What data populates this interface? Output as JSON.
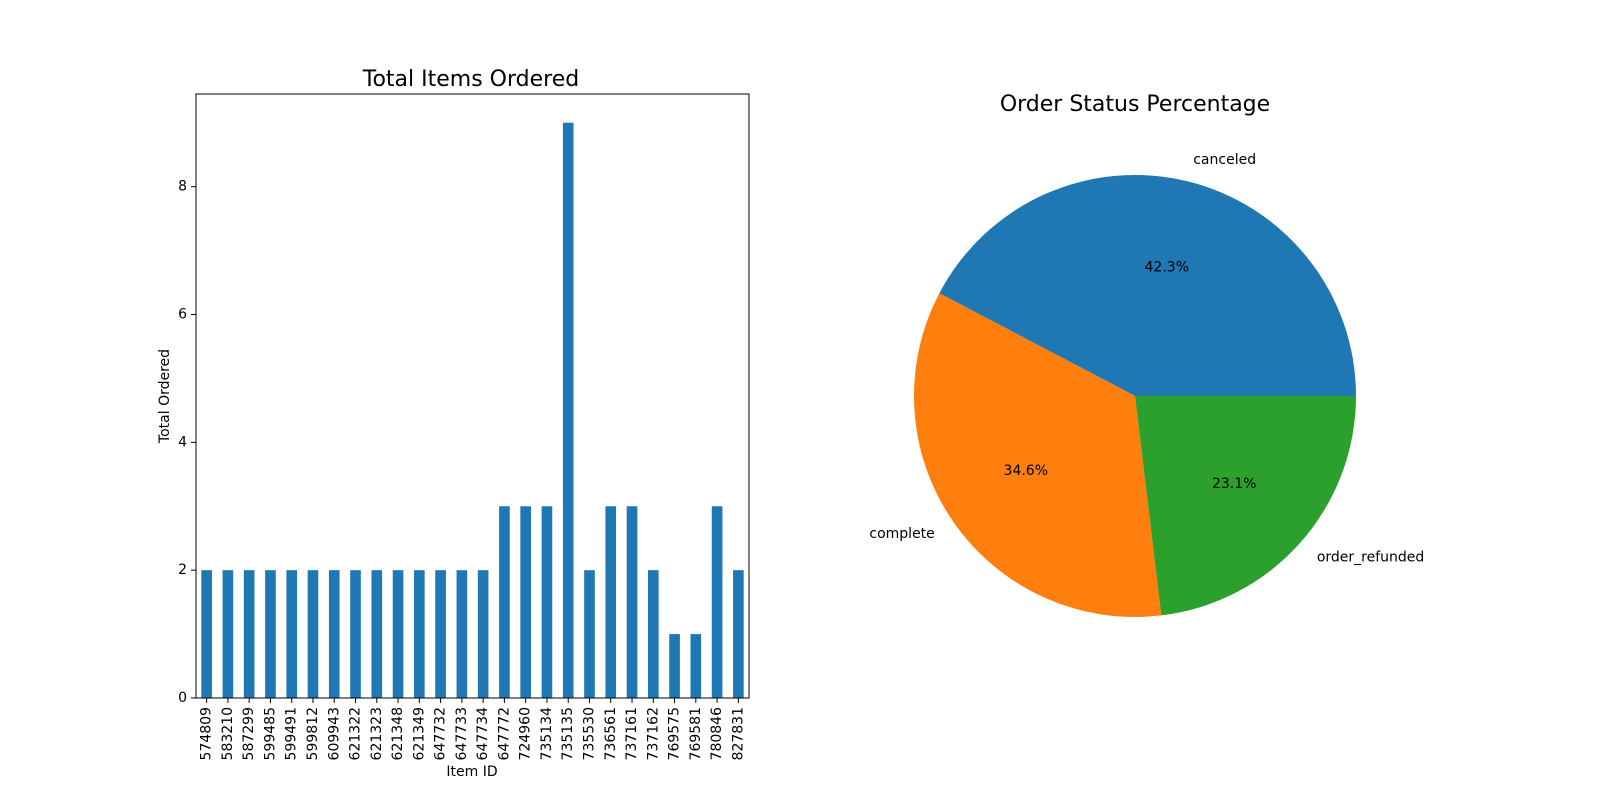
{
  "chart_data": [
    {
      "type": "bar",
      "title": "Total Items Ordered",
      "xlabel": "Item ID",
      "ylabel": "Total Ordered",
      "ylim": [
        0,
        9.45
      ],
      "yticks": [
        0,
        2,
        4,
        6,
        8
      ],
      "categories": [
        "574809",
        "583210",
        "587299",
        "599485",
        "599491",
        "599812",
        "609943",
        "621322",
        "621323",
        "621348",
        "621349",
        "647732",
        "647733",
        "647734",
        "647772",
        "724960",
        "735134",
        "735135",
        "735530",
        "736561",
        "737161",
        "737162",
        "769575",
        "769581",
        "780846",
        "827831"
      ],
      "values": [
        2,
        2,
        2,
        2,
        2,
        2,
        2,
        2,
        2,
        2,
        2,
        2,
        2,
        2,
        3,
        3,
        3,
        9,
        2,
        3,
        3,
        2,
        1,
        1,
        3,
        2
      ],
      "color": "#1f77b4",
      "grid": false
    },
    {
      "type": "pie",
      "title": "Order Status Percentage",
      "labels": [
        "canceled",
        "complete",
        "order_refunded"
      ],
      "values": [
        42.3,
        34.6,
        23.1
      ],
      "pct_labels": [
        "42.3%",
        "34.6%",
        "23.1%"
      ],
      "colors": [
        "#1f77b4",
        "#ff7f0e",
        "#2ca02c"
      ]
    }
  ]
}
